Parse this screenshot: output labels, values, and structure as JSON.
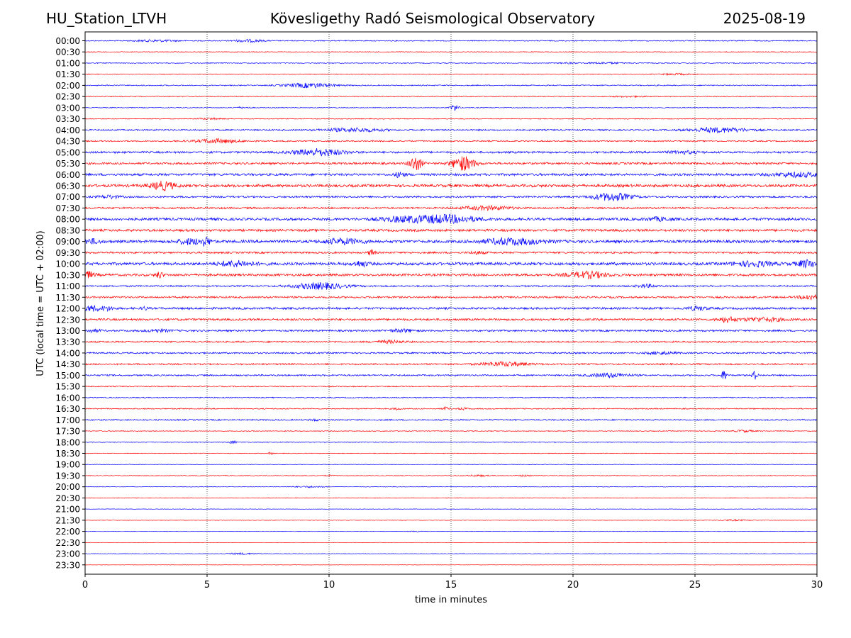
{
  "header": {
    "station": "HU_Station_LTVH",
    "observatory": "Kövesligethy Radó Seismological Observatory",
    "date": "2025-08-19"
  },
  "chart_data": {
    "type": "line",
    "title": "Kövesligethy Radó Seismological Observatory",
    "xlabel": "time in minutes",
    "ylabel": "UTC (local time = UTC + 02:00)",
    "xlim": [
      0,
      30
    ],
    "xticks": [
      0,
      5,
      10,
      15,
      20,
      25,
      30
    ],
    "vertical_gridlines_at": [
      5,
      10,
      15,
      20,
      25
    ],
    "grid": "vertical dotted",
    "legend": "none",
    "colors": {
      "even_rows": "#0000ff",
      "odd_rows": "#ff0000",
      "grid": "#000000"
    },
    "rows": [
      {
        "label": "00:00",
        "color": "#0000ff",
        "noise": 0.2,
        "events": [
          [
            2.9,
            0.35,
            0.9
          ],
          [
            6.7,
            0.5,
            0.6
          ]
        ]
      },
      {
        "label": "00:30",
        "color": "#ff0000",
        "noise": 0.15,
        "events": []
      },
      {
        "label": "01:00",
        "color": "#0000ff",
        "noise": 0.15,
        "events": [
          [
            19.8,
            0.2,
            0.4
          ],
          [
            21.3,
            0.3,
            0.7
          ]
        ]
      },
      {
        "label": "01:30",
        "color": "#ff0000",
        "noise": 0.15,
        "events": [
          [
            24.2,
            0.3,
            0.6
          ]
        ]
      },
      {
        "label": "02:00",
        "color": "#0000ff",
        "noise": 0.2,
        "events": [
          [
            9.2,
            0.9,
            1.0
          ]
        ]
      },
      {
        "label": "02:30",
        "color": "#ff0000",
        "noise": 0.15,
        "events": [
          [
            22.3,
            0.2,
            0.8
          ]
        ]
      },
      {
        "label": "03:00",
        "color": "#0000ff",
        "noise": 0.15,
        "events": [
          [
            6.5,
            0.3,
            0.3
          ],
          [
            15.15,
            1.5,
            0.15
          ]
        ]
      },
      {
        "label": "03:30",
        "color": "#ff0000",
        "noise": 0.15,
        "events": [
          [
            5.1,
            0.3,
            0.5
          ]
        ]
      },
      {
        "label": "04:00",
        "color": "#0000ff",
        "noise": 0.3,
        "events": [
          [
            11.0,
            0.7,
            1.2
          ],
          [
            26.0,
            0.9,
            1.2
          ]
        ]
      },
      {
        "label": "04:30",
        "color": "#ff0000",
        "noise": 0.25,
        "events": [
          [
            5.4,
            0.8,
            0.9
          ]
        ]
      },
      {
        "label": "05:00",
        "color": "#0000ff",
        "noise": 0.4,
        "events": [
          [
            9.6,
            1.3,
            1.0
          ],
          [
            24.5,
            0.5,
            0.6
          ]
        ]
      },
      {
        "label": "05:30",
        "color": "#ff0000",
        "noise": 0.4,
        "events": [
          [
            13.55,
            2.8,
            0.25
          ],
          [
            15.5,
            2.8,
            0.45
          ]
        ]
      },
      {
        "label": "06:00",
        "color": "#0000ff",
        "noise": 0.45,
        "events": [
          [
            12.9,
            1.0,
            0.2
          ],
          [
            29.2,
            0.8,
            1.0
          ]
        ]
      },
      {
        "label": "06:30",
        "color": "#ff0000",
        "noise": 0.55,
        "events": [
          [
            3.2,
            1.5,
            0.5
          ]
        ]
      },
      {
        "label": "07:00",
        "color": "#0000ff",
        "noise": 0.35,
        "events": [
          [
            1.0,
            0.6,
            0.4
          ],
          [
            21.6,
            1.5,
            0.8
          ]
        ]
      },
      {
        "label": "07:30",
        "color": "#ff0000",
        "noise": 0.35,
        "events": [
          [
            16.5,
            0.7,
            1.0
          ]
        ]
      },
      {
        "label": "08:00",
        "color": "#0000ff",
        "noise": 0.5,
        "events": [
          [
            13.0,
            0.9,
            1.0
          ],
          [
            14.8,
            1.5,
            1.2
          ],
          [
            23.5,
            0.6,
            0.5
          ]
        ]
      },
      {
        "label": "08:30",
        "color": "#ff0000",
        "noise": 0.45,
        "events": []
      },
      {
        "label": "09:00",
        "color": "#0000ff",
        "noise": 0.55,
        "events": [
          [
            0.2,
            0.9,
            0.4
          ],
          [
            4.3,
            1.0,
            0.5
          ],
          [
            4.95,
            1.5,
            0.2
          ],
          [
            10.6,
            1.0,
            0.8
          ],
          [
            17.5,
            1.2,
            1.2
          ]
        ]
      },
      {
        "label": "09:30",
        "color": "#ff0000",
        "noise": 0.35,
        "events": [
          [
            11.75,
            1.5,
            0.12
          ],
          [
            16.1,
            0.5,
            0.3
          ]
        ]
      },
      {
        "label": "10:00",
        "color": "#0000ff",
        "noise": 0.55,
        "events": [
          [
            6.2,
            1.0,
            0.7
          ],
          [
            11.3,
            0.9,
            0.3
          ],
          [
            27.4,
            0.9,
            0.8
          ],
          [
            29.6,
            1.4,
            0.4
          ]
        ]
      },
      {
        "label": "10:30",
        "color": "#ff0000",
        "noise": 0.45,
        "events": [
          [
            0.1,
            1.2,
            0.3
          ],
          [
            3.05,
            1.2,
            0.15
          ],
          [
            20.6,
            1.2,
            0.8
          ]
        ]
      },
      {
        "label": "11:00",
        "color": "#0000ff",
        "noise": 0.3,
        "events": [
          [
            9.6,
            1.3,
            1.0
          ],
          [
            23.0,
            0.6,
            0.4
          ]
        ]
      },
      {
        "label": "11:30",
        "color": "#ff0000",
        "noise": 0.35,
        "events": [
          [
            29.7,
            1.0,
            0.4
          ]
        ]
      },
      {
        "label": "12:00",
        "color": "#0000ff",
        "noise": 0.4,
        "events": [
          [
            0.3,
            1.0,
            0.5
          ],
          [
            0.95,
            0.6,
            0.2
          ],
          [
            2.45,
            0.6,
            0.12
          ],
          [
            25.1,
            0.7,
            0.4
          ]
        ]
      },
      {
        "label": "12:30",
        "color": "#ff0000",
        "noise": 0.4,
        "events": [
          [
            26.3,
            1.0,
            0.35
          ],
          [
            27.8,
            0.7,
            0.9
          ]
        ]
      },
      {
        "label": "13:00",
        "color": "#0000ff",
        "noise": 0.35,
        "events": [
          [
            0.35,
            0.5,
            0.3
          ],
          [
            3.0,
            0.5,
            0.5
          ],
          [
            13.0,
            0.6,
            0.5
          ]
        ]
      },
      {
        "label": "13:30",
        "color": "#ff0000",
        "noise": 0.3,
        "events": [
          [
            12.5,
            0.5,
            0.6
          ]
        ]
      },
      {
        "label": "14:00",
        "color": "#0000ff",
        "noise": 0.3,
        "events": [
          [
            23.6,
            0.5,
            0.6
          ]
        ]
      },
      {
        "label": "14:30",
        "color": "#ff0000",
        "noise": 0.3,
        "events": [
          [
            17.2,
            0.8,
            1.0
          ]
        ]
      },
      {
        "label": "15:00",
        "color": "#0000ff",
        "noise": 0.3,
        "events": [
          [
            21.5,
            0.8,
            0.8
          ],
          [
            26.2,
            1.9,
            0.12
          ],
          [
            27.45,
            1.6,
            0.12
          ]
        ]
      },
      {
        "label": "15:30",
        "color": "#ff0000",
        "noise": 0.2,
        "events": []
      },
      {
        "label": "16:00",
        "color": "#0000ff",
        "noise": 0.2,
        "events": []
      },
      {
        "label": "16:30",
        "color": "#ff0000",
        "noise": 0.2,
        "events": [
          [
            12.8,
            0.5,
            0.15
          ],
          [
            14.8,
            0.6,
            0.15
          ],
          [
            15.5,
            0.4,
            0.2
          ]
        ]
      },
      {
        "label": "17:00",
        "color": "#0000ff",
        "noise": 0.25,
        "events": [
          [
            9.4,
            0.4,
            0.2
          ]
        ]
      },
      {
        "label": "17:30",
        "color": "#ff0000",
        "noise": 0.15,
        "events": [
          [
            27.0,
            0.4,
            0.4
          ]
        ]
      },
      {
        "label": "18:00",
        "color": "#0000ff",
        "noise": 0.15,
        "events": [
          [
            6.05,
            0.6,
            0.15
          ]
        ]
      },
      {
        "label": "18:30",
        "color": "#ff0000",
        "noise": 0.12,
        "events": [
          [
            7.6,
            0.4,
            0.1
          ]
        ]
      },
      {
        "label": "19:00",
        "color": "#0000ff",
        "noise": 0.1,
        "events": []
      },
      {
        "label": "19:30",
        "color": "#ff0000",
        "noise": 0.12,
        "events": [
          [
            10.0,
            0.3,
            0.15
          ],
          [
            16.1,
            0.3,
            0.4
          ],
          [
            18.0,
            0.3,
            0.3
          ]
        ]
      },
      {
        "label": "20:00",
        "color": "#0000ff",
        "noise": 0.1,
        "events": [
          [
            9.2,
            0.3,
            0.6
          ]
        ]
      },
      {
        "label": "20:30",
        "color": "#ff0000",
        "noise": 0.12,
        "events": []
      },
      {
        "label": "21:00",
        "color": "#0000ff",
        "noise": 0.08,
        "events": []
      },
      {
        "label": "21:30",
        "color": "#ff0000",
        "noise": 0.08,
        "events": [
          [
            26.6,
            0.25,
            0.7
          ]
        ]
      },
      {
        "label": "22:00",
        "color": "#0000ff",
        "noise": 0.08,
        "events": [
          [
            13.6,
            0.2,
            0.3
          ]
        ]
      },
      {
        "label": "22:30",
        "color": "#ff0000",
        "noise": 0.06,
        "events": []
      },
      {
        "label": "23:00",
        "color": "#0000ff",
        "noise": 0.08,
        "events": [
          [
            6.4,
            0.35,
            0.6
          ]
        ]
      },
      {
        "label": "23:30",
        "color": "#ff0000",
        "noise": 0.06,
        "events": []
      }
    ]
  }
}
